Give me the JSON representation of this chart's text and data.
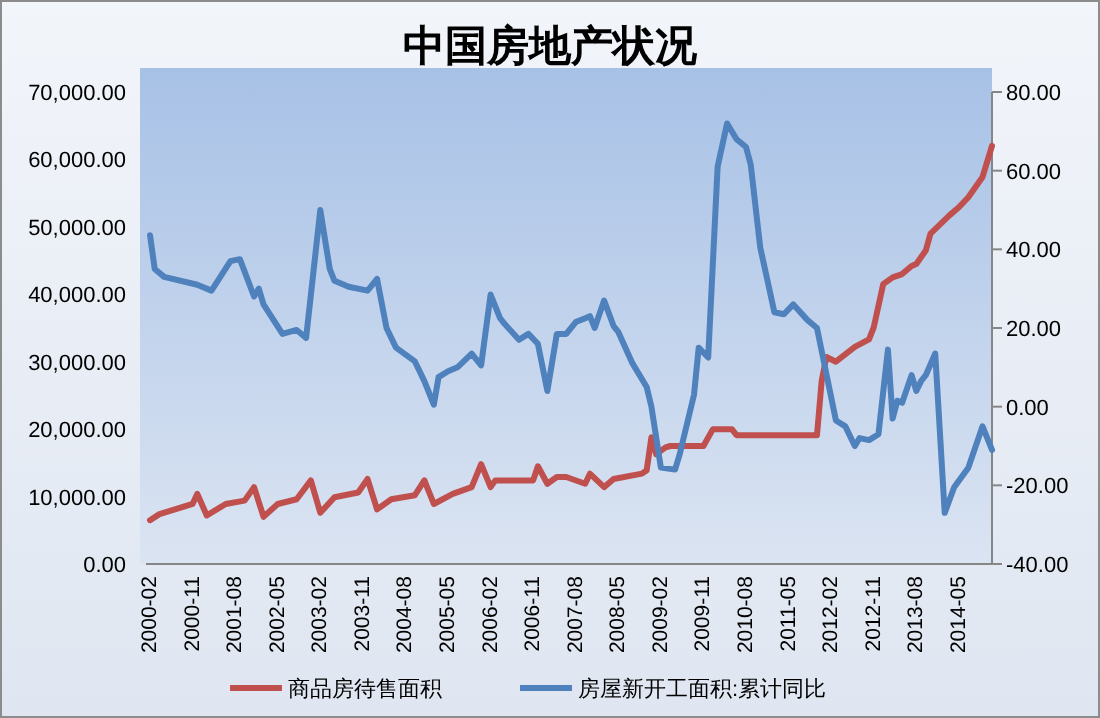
{
  "chart_data": {
    "type": "line",
    "title": "中国房地产状况",
    "xlim": [
      "2000-02",
      "2014-12"
    ],
    "xticks": [
      "2000-02",
      "2000-11",
      "2001-08",
      "2002-05",
      "2003-02",
      "2003-11",
      "2004-08",
      "2005-05",
      "2006-02",
      "2006-11",
      "2007-08",
      "2008-05",
      "2009-02",
      "2009-11",
      "2010-08",
      "2011-05",
      "2012-02",
      "2012-11",
      "2013-08",
      "2014-05"
    ],
    "ylim": [
      0,
      70000
    ],
    "yticks": [
      {
        "value": 0,
        "label": "0.00"
      },
      {
        "value": 10000,
        "label": "10,000.00"
      },
      {
        "value": 20000,
        "label": "20,000.00"
      },
      {
        "value": 30000,
        "label": "30,000.00"
      },
      {
        "value": 40000,
        "label": "40,000.00"
      },
      {
        "value": 50000,
        "label": "50,000.00"
      },
      {
        "value": 60000,
        "label": "60,000.00"
      },
      {
        "value": 70000,
        "label": "70,000.00"
      }
    ],
    "y2lim": [
      -40,
      80
    ],
    "y2ticks": [
      {
        "value": -40,
        "label": "-40.00"
      },
      {
        "value": -20,
        "label": "-20.00"
      },
      {
        "value": 0,
        "label": "0.00"
      },
      {
        "value": 20,
        "label": "20.00"
      },
      {
        "value": 40,
        "label": "40.00"
      },
      {
        "value": 60,
        "label": "60.00"
      },
      {
        "value": 80,
        "label": "80.00"
      }
    ],
    "legend": "bottom",
    "grid": false,
    "marker": "none",
    "line_style": "solid",
    "series": [
      {
        "name": "商品房待售面积",
        "color": "#c0504d",
        "x": [
          "2000-02",
          "2000-04",
          "2000-11",
          "2000-12",
          "2001-02",
          "2001-06",
          "2001-10",
          "2001-12",
          "2002-02",
          "2002-05",
          "2002-09",
          "2002-12",
          "2003-02",
          "2003-05",
          "2003-10",
          "2003-12",
          "2004-02",
          "2004-05",
          "2004-10",
          "2004-12",
          "2005-02",
          "2005-06",
          "2005-10",
          "2005-12",
          "2006-02",
          "2006-03",
          "2006-11",
          "2006-12",
          "2007-02",
          "2007-04",
          "2007-06",
          "2007-10",
          "2007-11",
          "2008-02",
          "2008-04",
          "2008-10",
          "2008-11",
          "2008-12",
          "2009-01",
          "2009-03",
          "2009-04",
          "2009-11",
          "2010-01",
          "2010-05",
          "2010-06",
          "2011-11",
          "2011-12",
          "2012-01",
          "2012-03",
          "2012-07",
          "2012-10",
          "2012-11",
          "2013-01",
          "2013-03",
          "2013-05",
          "2013-07",
          "2013-08",
          "2013-10",
          "2013-11",
          "2014-03",
          "2014-05",
          "2014-07",
          "2014-10",
          "2014-12"
        ],
        "values": [
          6500,
          7400,
          8900,
          10400,
          7200,
          8900,
          9400,
          11400,
          7000,
          8900,
          9600,
          12400,
          7600,
          9900,
          10600,
          12600,
          8100,
          9600,
          10200,
          12400,
          8900,
          10400,
          11400,
          14800,
          11400,
          12400,
          12400,
          14500,
          11900,
          12900,
          12900,
          11900,
          13400,
          11400,
          12600,
          13400,
          13900,
          18800,
          16300,
          17300,
          17500,
          17500,
          20000,
          20000,
          19100,
          19100,
          27200,
          30700,
          30000,
          32200,
          33300,
          35100,
          41500,
          42500,
          43000,
          44200,
          44500,
          46500,
          49000,
          51700,
          52900,
          54400,
          57400,
          62000
        ]
      },
      {
        "name": "房屋新开工面积:累计同比",
        "color": "#4f81bd",
        "axis": "y2",
        "x": [
          "2000-02",
          "2000-03",
          "2000-05",
          "2000-12",
          "2001-03",
          "2001-07",
          "2001-09",
          "2001-12",
          "2002-01",
          "2002-02",
          "2002-06",
          "2002-09",
          "2002-11",
          "2003-02",
          "2003-04",
          "2003-05",
          "2003-08",
          "2003-12",
          "2004-02",
          "2004-04",
          "2004-06",
          "2004-10",
          "2004-12",
          "2005-02",
          "2005-03",
          "2005-05",
          "2005-07",
          "2005-10",
          "2005-12",
          "2006-02",
          "2006-04",
          "2006-05",
          "2006-08",
          "2006-10",
          "2006-12",
          "2007-02",
          "2007-04",
          "2007-06",
          "2007-08",
          "2007-10",
          "2007-11",
          "2007-12",
          "2008-02",
          "2008-04",
          "2008-05",
          "2008-08",
          "2008-11",
          "2008-12",
          "2009-02",
          "2009-05",
          "2009-06",
          "2009-09",
          "2009-10",
          "2009-12",
          "2010-02",
          "2010-04",
          "2010-06",
          "2010-08",
          "2010-09",
          "2010-11",
          "2011-02",
          "2011-04",
          "2011-06",
          "2011-09",
          "2011-11",
          "2012-03",
          "2012-05",
          "2012-07",
          "2012-08",
          "2012-10",
          "2012-12",
          "2013-02",
          "2013-03",
          "2013-04",
          "2013-05",
          "2013-07",
          "2013-08",
          "2013-09",
          "2013-10",
          "2013-12",
          "2014-02",
          "2014-04",
          "2014-07",
          "2014-10",
          "2014-12"
        ],
        "values": [
          43.6,
          35,
          33,
          31,
          29.5,
          37,
          37.5,
          28,
          30,
          26,
          18.5,
          19.5,
          17.5,
          50,
          35,
          32,
          30.5,
          29.5,
          32.5,
          20,
          15,
          11.5,
          6.5,
          0.5,
          7.5,
          9,
          10,
          13.5,
          10.5,
          28.5,
          22.5,
          21,
          17,
          18.5,
          16,
          4,
          18.5,
          18.5,
          21.5,
          22.5,
          23,
          20,
          27,
          20.5,
          19,
          11,
          5,
          0,
          -15.5,
          -16,
          -12,
          3,
          15,
          12.5,
          61,
          72,
          68,
          66,
          61.5,
          40.5,
          24,
          23.5,
          26,
          22,
          20,
          -3.5,
          -5,
          -10,
          -8,
          -8.5,
          -7,
          14.5,
          -3,
          1.5,
          1,
          8,
          4,
          6.5,
          8,
          13.5,
          -27,
          -20.5,
          -15.5,
          -5,
          -11
        ]
      }
    ]
  }
}
